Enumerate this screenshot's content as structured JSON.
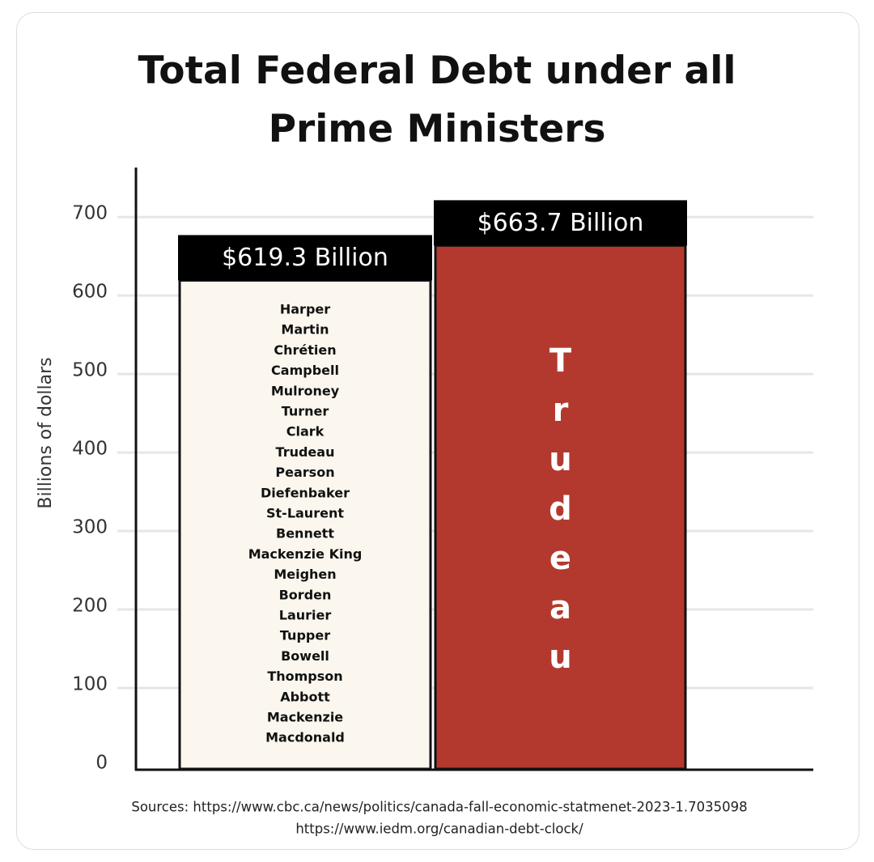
{
  "chart_data": {
    "type": "bar",
    "title": "Total Federal Debt under all Prime Ministers",
    "y_label": "Billions of dollars",
    "categories": [
      null,
      "Trudeau"
    ],
    "values": [
      619.3,
      663.7
    ],
    "value_labels": [
      "$619.3 Billion",
      "$663.7 Billion"
    ],
    "colors": [
      "#fbf7ee",
      "#b3392f"
    ],
    "annotations": [
      "Harper",
      "Martin",
      "Chrétien",
      "Campbell",
      "Mulroney",
      "Turner",
      "Clark",
      "Trudeau",
      "Pearson",
      "Diefenbaker",
      "St-Laurent",
      "Bennett",
      "Mackenzie King",
      "Meighen",
      "Borden",
      "Laurier",
      "Tupper",
      "Bowell",
      "Thompson",
      "Abbott",
      "Mackenzie",
      "Macdonald"
    ],
    "ylim": [
      0,
      760
    ],
    "yticks": [
      0,
      100,
      200,
      300,
      400,
      500,
      600,
      700
    ],
    "grid": true,
    "sources": [
      "Sources: https://www.cbc.ca/news/politics/canada-fall-economic-statmenet-2023-1.7035098",
      "https://www.iedm.org/canadian-debt-clock/"
    ]
  }
}
